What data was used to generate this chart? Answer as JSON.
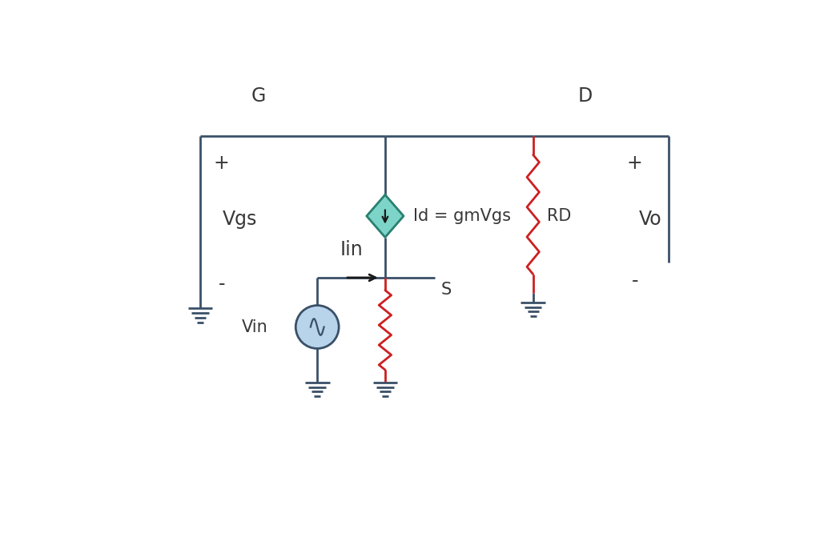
{
  "bg_color": "#ffffff",
  "wire_color": "#3a5068",
  "red_color": "#cc2020",
  "diamond_fill": "#7dd4c8",
  "diamond_edge": "#2a8070",
  "source_fill": "#b8d4ea",
  "source_edge": "#3a5068",
  "text_color": "#383838",
  "arrow_color": "#1a1a1a",
  "label_G": "G",
  "label_D": "D",
  "label_S": "S",
  "label_Vgs": "Vgs",
  "label_Vo": "Vo",
  "label_Vin": "Vin",
  "label_Iin": "Iin",
  "label_Id": "Id = gmVgs",
  "label_RD": "RD",
  "label_plus": "+",
  "label_minus": "-",
  "fontsize_main": 17,
  "fontsize_label": 15,
  "lw_wire": 2.0,
  "lw_component": 2.0
}
